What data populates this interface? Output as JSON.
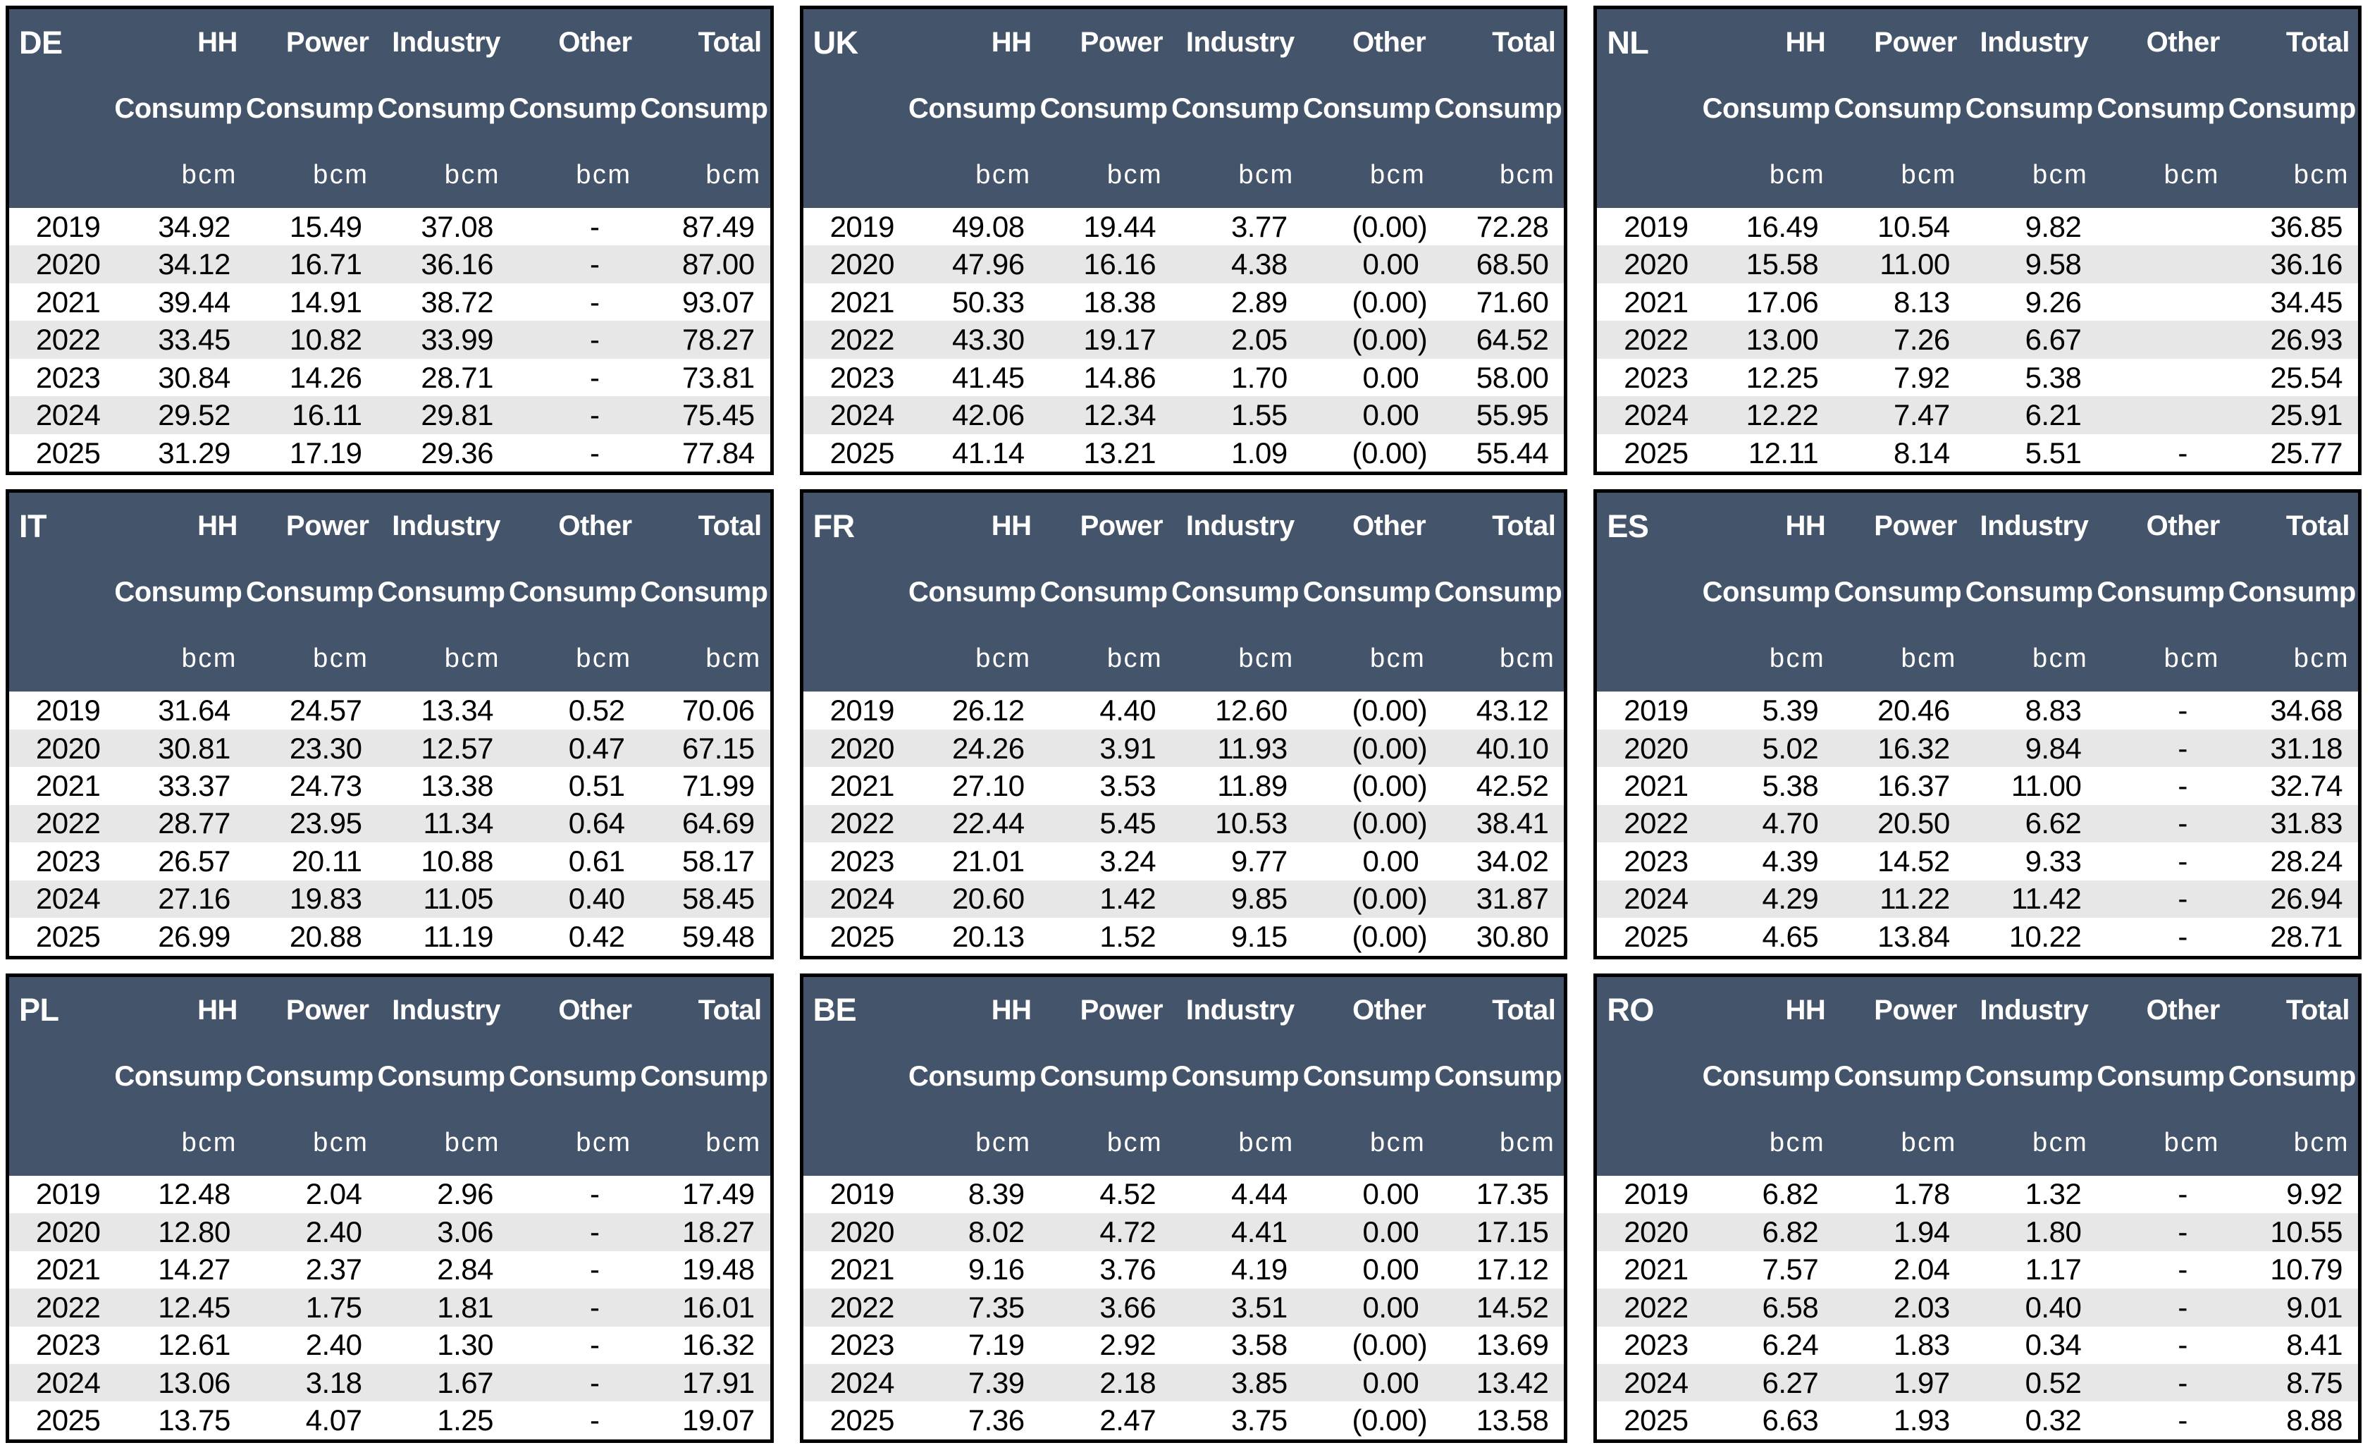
{
  "style": {
    "header_bg": "#44546A",
    "header_text": "#FFFFFF",
    "row_bg": "#FFFFFF",
    "row_alt_bg": "#E7E7E7",
    "border_color": "#000000",
    "text_color": "#000000"
  },
  "table_header": {
    "col_labels": [
      "HH",
      "Power",
      "Industry",
      "Other",
      "Total"
    ],
    "sub_label": "Consump",
    "unit_label": "bcm"
  },
  "chart_data": [
    {
      "type": "table",
      "country": "DE",
      "columns": [
        "",
        "HH Consump bcm",
        "Power Consump bcm",
        "Industry Consump bcm",
        "Other Consump bcm",
        "Total Consump bcm"
      ],
      "rows": [
        {
          "year": "2019",
          "values": [
            "34.92",
            "15.49",
            "37.08",
            "-",
            "87.49"
          ]
        },
        {
          "year": "2020",
          "values": [
            "34.12",
            "16.71",
            "36.16",
            "-",
            "87.00"
          ]
        },
        {
          "year": "2021",
          "values": [
            "39.44",
            "14.91",
            "38.72",
            "-",
            "93.07"
          ]
        },
        {
          "year": "2022",
          "values": [
            "33.45",
            "10.82",
            "33.99",
            "-",
            "78.27"
          ]
        },
        {
          "year": "2023",
          "values": [
            "30.84",
            "14.26",
            "28.71",
            "-",
            "73.81"
          ]
        },
        {
          "year": "2024",
          "values": [
            "29.52",
            "16.11",
            "29.81",
            "-",
            "75.45"
          ]
        },
        {
          "year": "2025",
          "values": [
            "31.29",
            "17.19",
            "29.36",
            "-",
            "77.84"
          ]
        }
      ]
    },
    {
      "type": "table",
      "country": "UK",
      "columns": [
        "",
        "HH Consump bcm",
        "Power Consump bcm",
        "Industry Consump bcm",
        "Other Consump bcm",
        "Total Consump bcm"
      ],
      "rows": [
        {
          "year": "2019",
          "values": [
            "49.08",
            "19.44",
            "3.77",
            "(0.00)",
            "72.28"
          ]
        },
        {
          "year": "2020",
          "values": [
            "47.96",
            "16.16",
            "4.38",
            "0.00",
            "68.50"
          ]
        },
        {
          "year": "2021",
          "values": [
            "50.33",
            "18.38",
            "2.89",
            "(0.00)",
            "71.60"
          ]
        },
        {
          "year": "2022",
          "values": [
            "43.30",
            "19.17",
            "2.05",
            "(0.00)",
            "64.52"
          ]
        },
        {
          "year": "2023",
          "values": [
            "41.45",
            "14.86",
            "1.70",
            "0.00",
            "58.00"
          ]
        },
        {
          "year": "2024",
          "values": [
            "42.06",
            "12.34",
            "1.55",
            "0.00",
            "55.95"
          ]
        },
        {
          "year": "2025",
          "values": [
            "41.14",
            "13.21",
            "1.09",
            "(0.00)",
            "55.44"
          ]
        }
      ]
    },
    {
      "type": "table",
      "country": "NL",
      "columns": [
        "",
        "HH Consump bcm",
        "Power Consump bcm",
        "Industry Consump bcm",
        "Other Consump bcm",
        "Total Consump bcm"
      ],
      "rows": [
        {
          "year": "2019",
          "values": [
            "16.49",
            "10.54",
            "9.82",
            "",
            "36.85"
          ]
        },
        {
          "year": "2020",
          "values": [
            "15.58",
            "11.00",
            "9.58",
            "",
            "36.16"
          ]
        },
        {
          "year": "2021",
          "values": [
            "17.06",
            "8.13",
            "9.26",
            "",
            "34.45"
          ]
        },
        {
          "year": "2022",
          "values": [
            "13.00",
            "7.26",
            "6.67",
            "",
            "26.93"
          ]
        },
        {
          "year": "2023",
          "values": [
            "12.25",
            "7.92",
            "5.38",
            "",
            "25.54"
          ]
        },
        {
          "year": "2024",
          "values": [
            "12.22",
            "7.47",
            "6.21",
            "",
            "25.91"
          ]
        },
        {
          "year": "2025",
          "values": [
            "12.11",
            "8.14",
            "5.51",
            "-",
            "25.77"
          ]
        }
      ]
    },
    {
      "type": "table",
      "country": "IT",
      "columns": [
        "",
        "HH Consump bcm",
        "Power Consump bcm",
        "Industry Consump bcm",
        "Other Consump bcm",
        "Total Consump bcm"
      ],
      "rows": [
        {
          "year": "2019",
          "values": [
            "31.64",
            "24.57",
            "13.34",
            "0.52",
            "70.06"
          ]
        },
        {
          "year": "2020",
          "values": [
            "30.81",
            "23.30",
            "12.57",
            "0.47",
            "67.15"
          ]
        },
        {
          "year": "2021",
          "values": [
            "33.37",
            "24.73",
            "13.38",
            "0.51",
            "71.99"
          ]
        },
        {
          "year": "2022",
          "values": [
            "28.77",
            "23.95",
            "11.34",
            "0.64",
            "64.69"
          ]
        },
        {
          "year": "2023",
          "values": [
            "26.57",
            "20.11",
            "10.88",
            "0.61",
            "58.17"
          ]
        },
        {
          "year": "2024",
          "values": [
            "27.16",
            "19.83",
            "11.05",
            "0.40",
            "58.45"
          ]
        },
        {
          "year": "2025",
          "values": [
            "26.99",
            "20.88",
            "11.19",
            "0.42",
            "59.48"
          ]
        }
      ]
    },
    {
      "type": "table",
      "country": "FR",
      "columns": [
        "",
        "HH Consump bcm",
        "Power Consump bcm",
        "Industry Consump bcm",
        "Other Consump bcm",
        "Total Consump bcm"
      ],
      "rows": [
        {
          "year": "2019",
          "values": [
            "26.12",
            "4.40",
            "12.60",
            "(0.00)",
            "43.12"
          ]
        },
        {
          "year": "2020",
          "values": [
            "24.26",
            "3.91",
            "11.93",
            "(0.00)",
            "40.10"
          ]
        },
        {
          "year": "2021",
          "values": [
            "27.10",
            "3.53",
            "11.89",
            "(0.00)",
            "42.52"
          ]
        },
        {
          "year": "2022",
          "values": [
            "22.44",
            "5.45",
            "10.53",
            "(0.00)",
            "38.41"
          ]
        },
        {
          "year": "2023",
          "values": [
            "21.01",
            "3.24",
            "9.77",
            "0.00",
            "34.02"
          ]
        },
        {
          "year": "2024",
          "values": [
            "20.60",
            "1.42",
            "9.85",
            "(0.00)",
            "31.87"
          ]
        },
        {
          "year": "2025",
          "values": [
            "20.13",
            "1.52",
            "9.15",
            "(0.00)",
            "30.80"
          ]
        }
      ]
    },
    {
      "type": "table",
      "country": "ES",
      "columns": [
        "",
        "HH Consump bcm",
        "Power Consump bcm",
        "Industry Consump bcm",
        "Other Consump bcm",
        "Total Consump bcm"
      ],
      "rows": [
        {
          "year": "2019",
          "values": [
            "5.39",
            "20.46",
            "8.83",
            "-",
            "34.68"
          ]
        },
        {
          "year": "2020",
          "values": [
            "5.02",
            "16.32",
            "9.84",
            "-",
            "31.18"
          ]
        },
        {
          "year": "2021",
          "values": [
            "5.38",
            "16.37",
            "11.00",
            "-",
            "32.74"
          ]
        },
        {
          "year": "2022",
          "values": [
            "4.70",
            "20.50",
            "6.62",
            "-",
            "31.83"
          ]
        },
        {
          "year": "2023",
          "values": [
            "4.39",
            "14.52",
            "9.33",
            "-",
            "28.24"
          ]
        },
        {
          "year": "2024",
          "values": [
            "4.29",
            "11.22",
            "11.42",
            "-",
            "26.94"
          ]
        },
        {
          "year": "2025",
          "values": [
            "4.65",
            "13.84",
            "10.22",
            "-",
            "28.71"
          ]
        }
      ]
    },
    {
      "type": "table",
      "country": "PL",
      "columns": [
        "",
        "HH Consump bcm",
        "Power Consump bcm",
        "Industry Consump bcm",
        "Other Consump bcm",
        "Total Consump bcm"
      ],
      "rows": [
        {
          "year": "2019",
          "values": [
            "12.48",
            "2.04",
            "2.96",
            "-",
            "17.49"
          ]
        },
        {
          "year": "2020",
          "values": [
            "12.80",
            "2.40",
            "3.06",
            "-",
            "18.27"
          ]
        },
        {
          "year": "2021",
          "values": [
            "14.27",
            "2.37",
            "2.84",
            "-",
            "19.48"
          ]
        },
        {
          "year": "2022",
          "values": [
            "12.45",
            "1.75",
            "1.81",
            "-",
            "16.01"
          ]
        },
        {
          "year": "2023",
          "values": [
            "12.61",
            "2.40",
            "1.30",
            "-",
            "16.32"
          ]
        },
        {
          "year": "2024",
          "values": [
            "13.06",
            "3.18",
            "1.67",
            "-",
            "17.91"
          ]
        },
        {
          "year": "2025",
          "values": [
            "13.75",
            "4.07",
            "1.25",
            "-",
            "19.07"
          ]
        }
      ]
    },
    {
      "type": "table",
      "country": "BE",
      "columns": [
        "",
        "HH Consump bcm",
        "Power Consump bcm",
        "Industry Consump bcm",
        "Other Consump bcm",
        "Total Consump bcm"
      ],
      "rows": [
        {
          "year": "2019",
          "values": [
            "8.39",
            "4.52",
            "4.44",
            "0.00",
            "17.35"
          ]
        },
        {
          "year": "2020",
          "values": [
            "8.02",
            "4.72",
            "4.41",
            "0.00",
            "17.15"
          ]
        },
        {
          "year": "2021",
          "values": [
            "9.16",
            "3.76",
            "4.19",
            "0.00",
            "17.12"
          ]
        },
        {
          "year": "2022",
          "values": [
            "7.35",
            "3.66",
            "3.51",
            "0.00",
            "14.52"
          ]
        },
        {
          "year": "2023",
          "values": [
            "7.19",
            "2.92",
            "3.58",
            "(0.00)",
            "13.69"
          ]
        },
        {
          "year": "2024",
          "values": [
            "7.39",
            "2.18",
            "3.85",
            "0.00",
            "13.42"
          ]
        },
        {
          "year": "2025",
          "values": [
            "7.36",
            "2.47",
            "3.75",
            "(0.00)",
            "13.58"
          ]
        }
      ]
    },
    {
      "type": "table",
      "country": "RO",
      "columns": [
        "",
        "HH Consump bcm",
        "Power Consump bcm",
        "Industry Consump bcm",
        "Other Consump bcm",
        "Total Consump bcm"
      ],
      "rows": [
        {
          "year": "2019",
          "values": [
            "6.82",
            "1.78",
            "1.32",
            "-",
            "9.92"
          ]
        },
        {
          "year": "2020",
          "values": [
            "6.82",
            "1.94",
            "1.80",
            "-",
            "10.55"
          ]
        },
        {
          "year": "2021",
          "values": [
            "7.57",
            "2.04",
            "1.17",
            "-",
            "10.79"
          ]
        },
        {
          "year": "2022",
          "values": [
            "6.58",
            "2.03",
            "0.40",
            "-",
            "9.01"
          ]
        },
        {
          "year": "2023",
          "values": [
            "6.24",
            "1.83",
            "0.34",
            "-",
            "8.41"
          ]
        },
        {
          "year": "2024",
          "values": [
            "6.27",
            "1.97",
            "0.52",
            "-",
            "8.75"
          ]
        },
        {
          "year": "2025",
          "values": [
            "6.63",
            "1.93",
            "0.32",
            "-",
            "8.88"
          ]
        }
      ]
    }
  ]
}
